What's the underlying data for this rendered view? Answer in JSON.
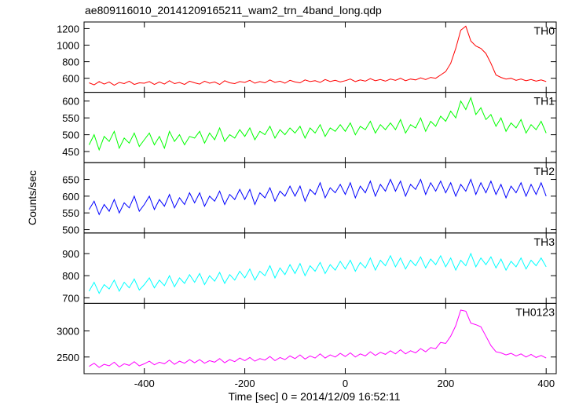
{
  "chart_data": {
    "type": "line",
    "title": "ae809116010_20141209165211_wam2_trn_4band_long.qdp",
    "xlabel": "Time [sec] 0 = 2014/12/09 16:52:11",
    "ylabel": "Counts/sec",
    "xlim": [
      -520,
      420
    ],
    "xticks": [
      -400,
      -200,
      0,
      200,
      400
    ],
    "x": [
      -510,
      -500,
      -490,
      -480,
      -470,
      -460,
      -450,
      -440,
      -430,
      -420,
      -410,
      -400,
      -390,
      -380,
      -370,
      -360,
      -350,
      -340,
      -330,
      -320,
      -310,
      -300,
      -290,
      -280,
      -270,
      -260,
      -250,
      -240,
      -230,
      -220,
      -210,
      -200,
      -190,
      -180,
      -170,
      -160,
      -150,
      -140,
      -130,
      -120,
      -110,
      -100,
      -90,
      -80,
      -70,
      -60,
      -50,
      -40,
      -30,
      -20,
      -10,
      0,
      10,
      20,
      30,
      40,
      50,
      60,
      70,
      80,
      90,
      100,
      110,
      120,
      130,
      140,
      150,
      160,
      170,
      180,
      190,
      200,
      210,
      220,
      230,
      240,
      250,
      260,
      270,
      280,
      290,
      300,
      310,
      320,
      330,
      340,
      350,
      360,
      370,
      380,
      390,
      400
    ],
    "series": [
      {
        "name": "TH0",
        "color": "#ff0000",
        "ylim": [
          430,
          1280
        ],
        "yticks": [
          600,
          800,
          1000,
          1200
        ],
        "values": [
          545,
          520,
          560,
          530,
          555,
          515,
          550,
          535,
          565,
          525,
          545,
          540,
          560,
          525,
          555,
          530,
          570,
          535,
          550,
          525,
          565,
          545,
          530,
          565,
          540,
          555,
          525,
          570,
          545,
          535,
          560,
          550,
          575,
          540,
          560,
          545,
          580,
          550,
          565,
          540,
          575,
          555,
          545,
          580,
          560,
          570,
          550,
          585,
          560,
          575,
          555,
          570,
          590,
          560,
          580,
          565,
          595,
          570,
          585,
          565,
          590,
          575,
          600,
          570,
          590,
          580,
          605,
          585,
          610,
          600,
          640,
          680,
          780,
          960,
          1180,
          1230,
          1050,
          990,
          960,
          900,
          780,
          640,
          610,
          590,
          600,
          575,
          590,
          570,
          585,
          565,
          580,
          560
        ]
      },
      {
        "name": "TH1",
        "color": "#00ff00",
        "ylim": [
          417,
          626
        ],
        "yticks": [
          450,
          500,
          550,
          600
        ],
        "values": [
          470,
          500,
          455,
          495,
          480,
          510,
          460,
          490,
          475,
          505,
          465,
          485,
          505,
          470,
          495,
          460,
          510,
          480,
          500,
          470,
          495,
          490,
          510,
          475,
          505,
          485,
          520,
          480,
          500,
          490,
          515,
          495,
          520,
          485,
          510,
          500,
          525,
          490,
          515,
          500,
          520,
          505,
          525,
          490,
          520,
          505,
          530,
          495,
          520,
          510,
          530,
          510,
          535,
          500,
          525,
          515,
          540,
          505,
          530,
          515,
          535,
          515,
          545,
          505,
          530,
          520,
          550,
          510,
          540,
          525,
          555,
          540,
          570,
          550,
          600,
          575,
          610,
          560,
          580,
          545,
          560,
          525,
          550,
          510,
          535,
          520,
          545,
          505,
          530,
          515,
          540,
          505
        ]
      },
      {
        "name": "TH2",
        "color": "#0000ff",
        "ylim": [
          490,
          700
        ],
        "yticks": [
          500,
          550,
          600,
          650
        ],
        "values": [
          560,
          585,
          545,
          575,
          555,
          590,
          550,
          580,
          565,
          600,
          555,
          575,
          600,
          560,
          590,
          570,
          605,
          565,
          595,
          575,
          610,
          580,
          610,
          570,
          600,
          585,
          615,
          575,
          605,
          590,
          620,
          590,
          620,
          575,
          610,
          595,
          625,
          585,
          615,
          600,
          630,
          600,
          630,
          585,
          620,
          605,
          640,
          595,
          625,
          610,
          635,
          605,
          640,
          595,
          630,
          610,
          645,
          600,
          635,
          615,
          650,
          615,
          645,
          600,
          635,
          620,
          650,
          605,
          640,
          615,
          645,
          610,
          640,
          600,
          635,
          615,
          650,
          605,
          640,
          610,
          645,
          605,
          635,
          595,
          630,
          610,
          640,
          600,
          635,
          605,
          640,
          600
        ]
      },
      {
        "name": "TH3",
        "color": "#00ffff",
        "ylim": [
          675,
          993
        ],
        "yticks": [
          700,
          800,
          900
        ],
        "values": [
          730,
          770,
          720,
          760,
          740,
          780,
          730,
          770,
          745,
          785,
          735,
          760,
          790,
          745,
          780,
          755,
          800,
          750,
          790,
          765,
          805,
          770,
          810,
          760,
          800,
          775,
          815,
          765,
          805,
          780,
          820,
          790,
          830,
          780,
          820,
          800,
          845,
          790,
          835,
          805,
          850,
          810,
          855,
          800,
          845,
          820,
          860,
          810,
          850,
          825,
          865,
          830,
          870,
          820,
          860,
          835,
          880,
          825,
          870,
          845,
          890,
          840,
          880,
          830,
          870,
          845,
          885,
          835,
          875,
          850,
          890,
          840,
          880,
          825,
          870,
          845,
          900,
          840,
          880,
          850,
          885,
          835,
          875,
          825,
          865,
          840,
          880,
          830,
          870,
          845,
          880,
          840
        ]
      },
      {
        "name": "TH0123",
        "color": "#ff00ff",
        "ylim": [
          2180,
          3530
        ],
        "yticks": [
          2500,
          3000
        ],
        "values": [
          2320,
          2380,
          2300,
          2360,
          2330,
          2400,
          2310,
          2370,
          2340,
          2410,
          2330,
          2370,
          2420,
          2350,
          2400,
          2370,
          2440,
          2360,
          2420,
          2380,
          2450,
          2390,
          2450,
          2380,
          2430,
          2400,
          2470,
          2390,
          2450,
          2410,
          2480,
          2430,
          2490,
          2420,
          2470,
          2440,
          2510,
          2430,
          2490,
          2450,
          2520,
          2470,
          2540,
          2460,
          2520,
          2480,
          2560,
          2480,
          2540,
          2500,
          2570,
          2510,
          2580,
          2500,
          2560,
          2520,
          2600,
          2530,
          2590,
          2550,
          2620,
          2560,
          2640,
          2560,
          2620,
          2580,
          2660,
          2600,
          2680,
          2660,
          2780,
          2760,
          2900,
          3100,
          3400,
          3380,
          3150,
          3120,
          3080,
          2900,
          2720,
          2600,
          2580,
          2540,
          2570,
          2520,
          2560,
          2500,
          2550,
          2490,
          2530,
          2480
        ]
      }
    ]
  }
}
